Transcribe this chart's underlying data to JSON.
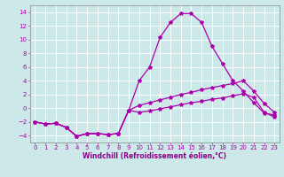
{
  "background_color": "#cde8e8",
  "grid_color": "#b0d8d8",
  "line_color": "#aa00aa",
  "xlabel": "Windchill (Refroidissement éolien,°C)",
  "xlabel_color": "#880088",
  "xlim": [
    -0.5,
    23.5
  ],
  "ylim": [
    -5.0,
    15.0
  ],
  "yticks": [
    -4,
    -2,
    0,
    2,
    4,
    6,
    8,
    10,
    12,
    14
  ],
  "xticks": [
    0,
    1,
    2,
    3,
    4,
    5,
    6,
    7,
    8,
    9,
    10,
    11,
    12,
    13,
    14,
    15,
    16,
    17,
    18,
    19,
    20,
    21,
    22,
    23
  ],
  "curve1_x": [
    0,
    1,
    2,
    3,
    4,
    5,
    6,
    7,
    8,
    9,
    10,
    11,
    12,
    13,
    14,
    15,
    16,
    17,
    18,
    19,
    20,
    21,
    22,
    23
  ],
  "curve1_y": [
    -2.0,
    -2.3,
    -2.2,
    -2.8,
    -4.1,
    -3.7,
    -3.7,
    -3.85,
    -3.7,
    -0.3,
    4.0,
    6.0,
    10.3,
    12.5,
    13.8,
    13.8,
    12.5,
    9.0,
    6.5,
    4.0,
    2.5,
    0.8,
    -0.7,
    -1.0
  ],
  "curve2_x": [
    0,
    1,
    2,
    3,
    4,
    5,
    6,
    7,
    8,
    9,
    10,
    11,
    12,
    13,
    14,
    15,
    16,
    17,
    18,
    19,
    20,
    21,
    22,
    23
  ],
  "curve2_y": [
    -2.0,
    -2.3,
    -2.2,
    -2.8,
    -4.1,
    -3.7,
    -3.7,
    -3.85,
    -3.7,
    -0.3,
    0.4,
    0.8,
    1.2,
    1.6,
    2.0,
    2.3,
    2.7,
    3.0,
    3.3,
    3.6,
    4.0,
    2.5,
    0.7,
    -0.6
  ],
  "curve3_x": [
    0,
    1,
    2,
    3,
    4,
    5,
    6,
    7,
    8,
    9,
    10,
    11,
    12,
    13,
    14,
    15,
    16,
    17,
    18,
    19,
    20,
    21,
    22,
    23
  ],
  "curve3_y": [
    -2.0,
    -2.3,
    -2.2,
    -2.8,
    -4.1,
    -3.7,
    -3.7,
    -3.85,
    -3.7,
    -0.3,
    -0.6,
    -0.4,
    -0.1,
    0.2,
    0.5,
    0.8,
    1.0,
    1.3,
    1.5,
    1.8,
    2.1,
    1.6,
    -0.6,
    -1.3
  ],
  "marker": "*",
  "markersize": 3,
  "linewidth": 0.9,
  "xlabel_fontsize": 5.5,
  "tick_fontsize": 5.0,
  "spine_color": "#888888"
}
